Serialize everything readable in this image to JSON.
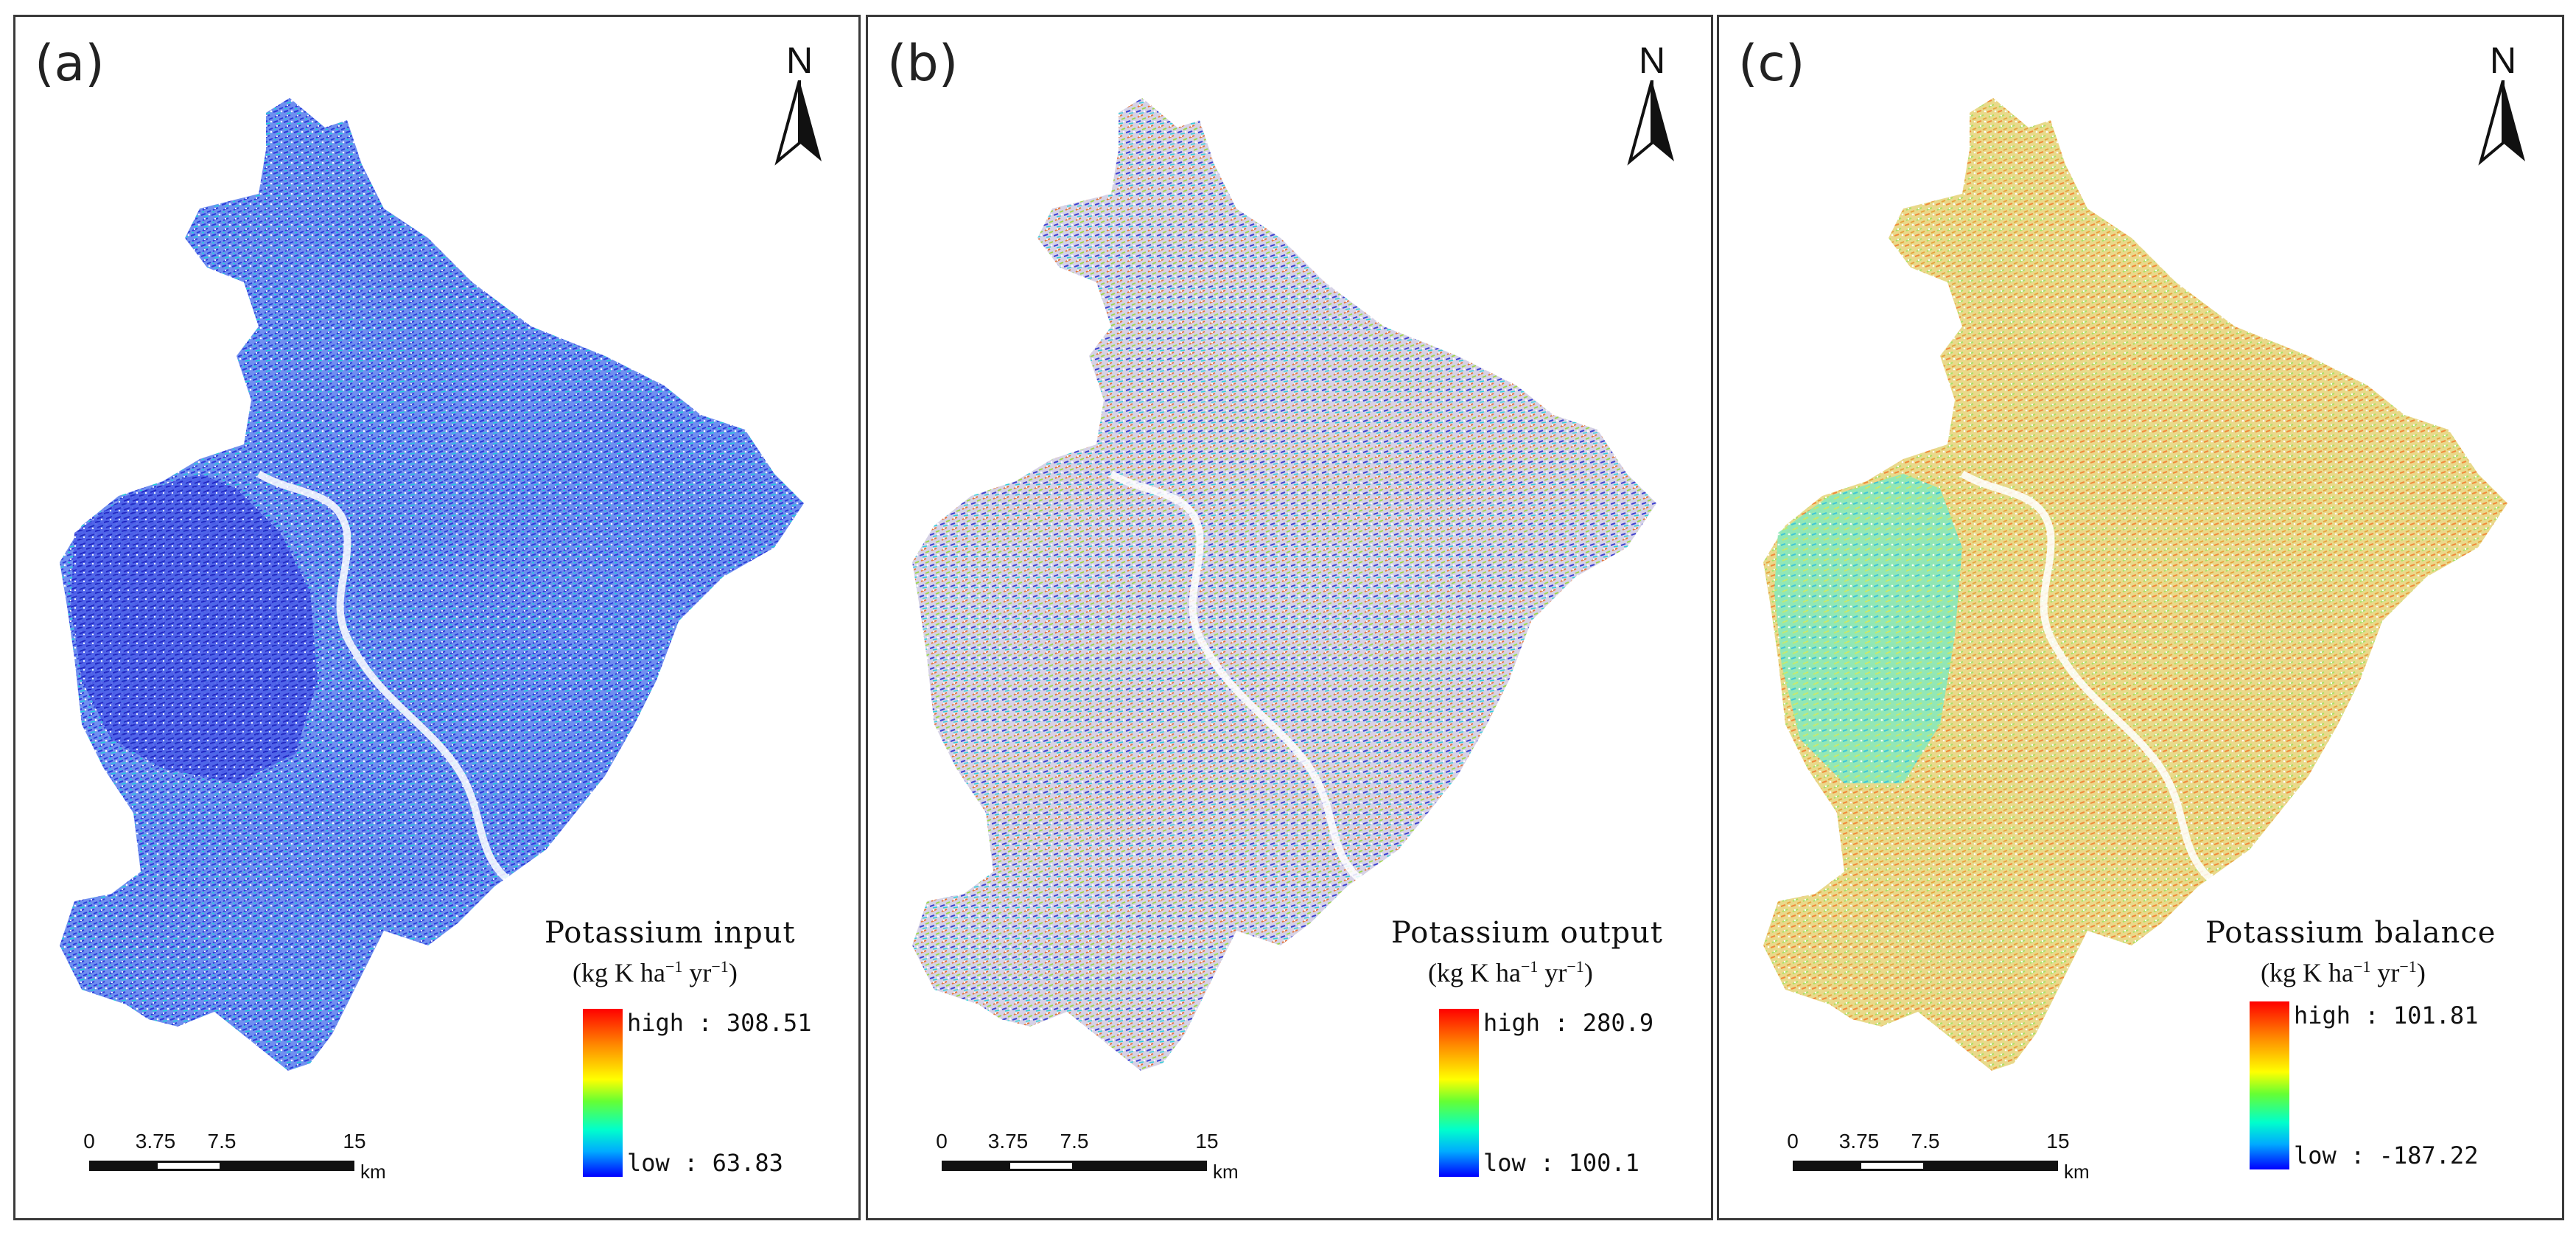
{
  "panels": [
    {
      "label": "(a)",
      "north": "N",
      "legend": {
        "title": "Potassium input",
        "unit_base": "(kg K ha",
        "unit_yr": " yr",
        "unit_end": ")",
        "exp": "−1",
        "high": "high : 308.51",
        "low": "low : 63.83"
      },
      "tint": "input"
    },
    {
      "label": "(b)",
      "north": "N",
      "legend": {
        "title": "Potassium output",
        "unit_base": "(kg K ha",
        "unit_yr": " yr",
        "unit_end": ")",
        "exp": "−1",
        "high": "high : 280.9",
        "low": "low : 100.1"
      },
      "tint": "output"
    },
    {
      "label": "(c)",
      "north": "N",
      "legend": {
        "title": "Potassium balance",
        "unit_base": "(kg K ha",
        "unit_yr": " yr",
        "unit_end": ")",
        "exp": "−1",
        "high": "high : 101.81",
        "low": "low : -187.22"
      },
      "tint": "balance"
    }
  ],
  "scalebar": {
    "ticks": [
      "0",
      "3.75",
      "7.5",
      "15"
    ],
    "unit": "km"
  },
  "colors": {
    "frame": "#3a3a3a",
    "ramp_high": "#ff0000",
    "ramp_low": "#0000ff"
  }
}
